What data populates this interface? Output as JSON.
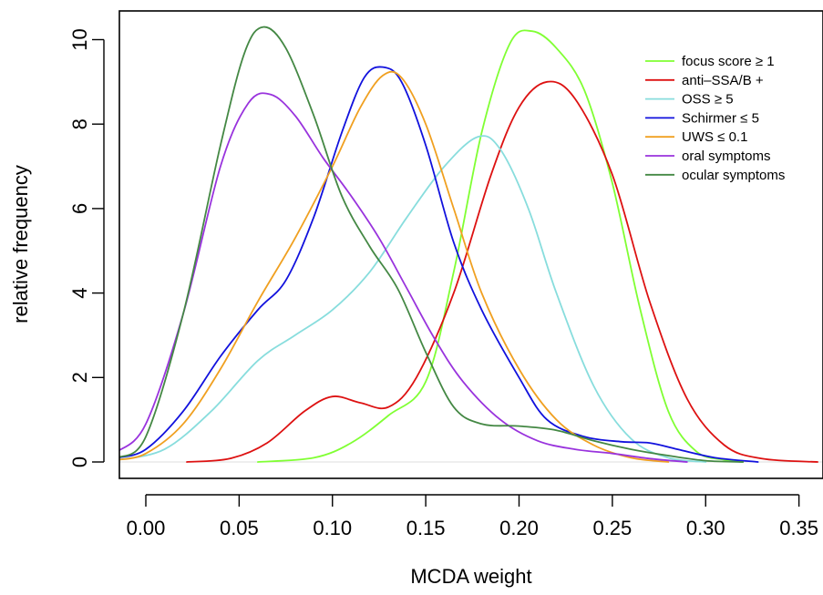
{
  "chart_data": {
    "type": "line",
    "title": "",
    "xlabel": "MCDA weight",
    "ylabel": "relative frequency",
    "xlim": [
      -0.015,
      0.362
    ],
    "ylim": [
      -0.35,
      10.65
    ],
    "grid": false,
    "legend_position": "top-right",
    "x_ticks": [
      "0.00",
      "0.05",
      "0.10",
      "0.15",
      "0.20",
      "0.25",
      "0.30",
      "0.35"
    ],
    "y_ticks": [
      "0",
      "2",
      "4",
      "6",
      "8",
      "10"
    ],
    "series": [
      {
        "name": "focus score ≥ 1",
        "color": "#80ff33",
        "points": [
          [
            0.06,
            0.0
          ],
          [
            0.09,
            0.1
          ],
          [
            0.11,
            0.45
          ],
          [
            0.13,
            1.1
          ],
          [
            0.15,
            1.9
          ],
          [
            0.165,
            4.5
          ],
          [
            0.18,
            7.8
          ],
          [
            0.195,
            9.9
          ],
          [
            0.207,
            10.2
          ],
          [
            0.22,
            9.8
          ],
          [
            0.235,
            8.8
          ],
          [
            0.25,
            6.6
          ],
          [
            0.265,
            3.6
          ],
          [
            0.28,
            1.2
          ],
          [
            0.295,
            0.25
          ],
          [
            0.31,
            0.05
          ],
          [
            0.32,
            0.0
          ]
        ]
      },
      {
        "name": "anti–SSA/B +",
        "color": "#dd1111",
        "points": [
          [
            0.022,
            0.0
          ],
          [
            0.045,
            0.08
          ],
          [
            0.065,
            0.45
          ],
          [
            0.085,
            1.2
          ],
          [
            0.1,
            1.55
          ],
          [
            0.115,
            1.4
          ],
          [
            0.13,
            1.3
          ],
          [
            0.145,
            2.0
          ],
          [
            0.165,
            4.0
          ],
          [
            0.185,
            6.8
          ],
          [
            0.2,
            8.4
          ],
          [
            0.215,
            9.0
          ],
          [
            0.23,
            8.6
          ],
          [
            0.25,
            6.8
          ],
          [
            0.27,
            3.8
          ],
          [
            0.29,
            1.5
          ],
          [
            0.31,
            0.4
          ],
          [
            0.33,
            0.08
          ],
          [
            0.36,
            0.0
          ]
        ]
      },
      {
        "name": "OSS ≥ 5",
        "color": "#88dddd",
        "points": [
          [
            -0.015,
            0.05
          ],
          [
            0.01,
            0.3
          ],
          [
            0.035,
            1.2
          ],
          [
            0.06,
            2.4
          ],
          [
            0.08,
            3.0
          ],
          [
            0.1,
            3.6
          ],
          [
            0.12,
            4.5
          ],
          [
            0.14,
            5.8
          ],
          [
            0.16,
            7.0
          ],
          [
            0.178,
            7.7
          ],
          [
            0.19,
            7.4
          ],
          [
            0.205,
            6.0
          ],
          [
            0.22,
            4.0
          ],
          [
            0.24,
            1.8
          ],
          [
            0.26,
            0.55
          ],
          [
            0.28,
            0.1
          ],
          [
            0.3,
            0.0
          ]
        ]
      },
      {
        "name": "Schirmer ≤ 5",
        "color": "#1111dd",
        "points": [
          [
            -0.015,
            0.1
          ],
          [
            0.0,
            0.3
          ],
          [
            0.02,
            1.2
          ],
          [
            0.04,
            2.5
          ],
          [
            0.06,
            3.6
          ],
          [
            0.075,
            4.3
          ],
          [
            0.09,
            5.8
          ],
          [
            0.105,
            7.8
          ],
          [
            0.117,
            9.1
          ],
          [
            0.127,
            9.35
          ],
          [
            0.137,
            9.0
          ],
          [
            0.15,
            7.5
          ],
          [
            0.165,
            5.2
          ],
          [
            0.18,
            3.6
          ],
          [
            0.2,
            2.0
          ],
          [
            0.215,
            1.0
          ],
          [
            0.235,
            0.6
          ],
          [
            0.255,
            0.48
          ],
          [
            0.27,
            0.45
          ],
          [
            0.285,
            0.3
          ],
          [
            0.305,
            0.1
          ],
          [
            0.328,
            0.0
          ]
        ]
      },
      {
        "name": "UWS ≤ 0.1",
        "color": "#f0a020",
        "points": [
          [
            -0.015,
            0.05
          ],
          [
            0.0,
            0.2
          ],
          [
            0.02,
            0.9
          ],
          [
            0.04,
            2.2
          ],
          [
            0.06,
            3.8
          ],
          [
            0.08,
            5.3
          ],
          [
            0.1,
            7.0
          ],
          [
            0.115,
            8.4
          ],
          [
            0.127,
            9.15
          ],
          [
            0.137,
            9.1
          ],
          [
            0.15,
            8.0
          ],
          [
            0.165,
            6.0
          ],
          [
            0.18,
            4.0
          ],
          [
            0.2,
            2.2
          ],
          [
            0.22,
            1.0
          ],
          [
            0.24,
            0.4
          ],
          [
            0.26,
            0.1
          ],
          [
            0.28,
            0.0
          ]
        ]
      },
      {
        "name": "oral symptoms",
        "color": "#9933dd",
        "points": [
          [
            -0.015,
            0.25
          ],
          [
            0.0,
            0.9
          ],
          [
            0.02,
            3.5
          ],
          [
            0.04,
            7.0
          ],
          [
            0.055,
            8.5
          ],
          [
            0.067,
            8.7
          ],
          [
            0.08,
            8.2
          ],
          [
            0.095,
            7.2
          ],
          [
            0.11,
            6.3
          ],
          [
            0.125,
            5.3
          ],
          [
            0.14,
            4.1
          ],
          [
            0.155,
            2.9
          ],
          [
            0.17,
            1.9
          ],
          [
            0.19,
            1.0
          ],
          [
            0.21,
            0.5
          ],
          [
            0.23,
            0.3
          ],
          [
            0.25,
            0.2
          ],
          [
            0.27,
            0.08
          ],
          [
            0.29,
            0.0
          ]
        ]
      },
      {
        "name": "ocular symptoms",
        "color": "#448844",
        "points": [
          [
            -0.015,
            0.1
          ],
          [
            0.0,
            0.6
          ],
          [
            0.02,
            3.5
          ],
          [
            0.04,
            7.5
          ],
          [
            0.053,
            9.7
          ],
          [
            0.063,
            10.3
          ],
          [
            0.075,
            9.8
          ],
          [
            0.09,
            8.2
          ],
          [
            0.105,
            6.3
          ],
          [
            0.12,
            5.1
          ],
          [
            0.135,
            4.1
          ],
          [
            0.15,
            2.6
          ],
          [
            0.165,
            1.3
          ],
          [
            0.18,
            0.9
          ],
          [
            0.2,
            0.85
          ],
          [
            0.22,
            0.75
          ],
          [
            0.24,
            0.5
          ],
          [
            0.26,
            0.3
          ],
          [
            0.28,
            0.15
          ],
          [
            0.3,
            0.03
          ],
          [
            0.32,
            0.0
          ]
        ]
      }
    ]
  }
}
